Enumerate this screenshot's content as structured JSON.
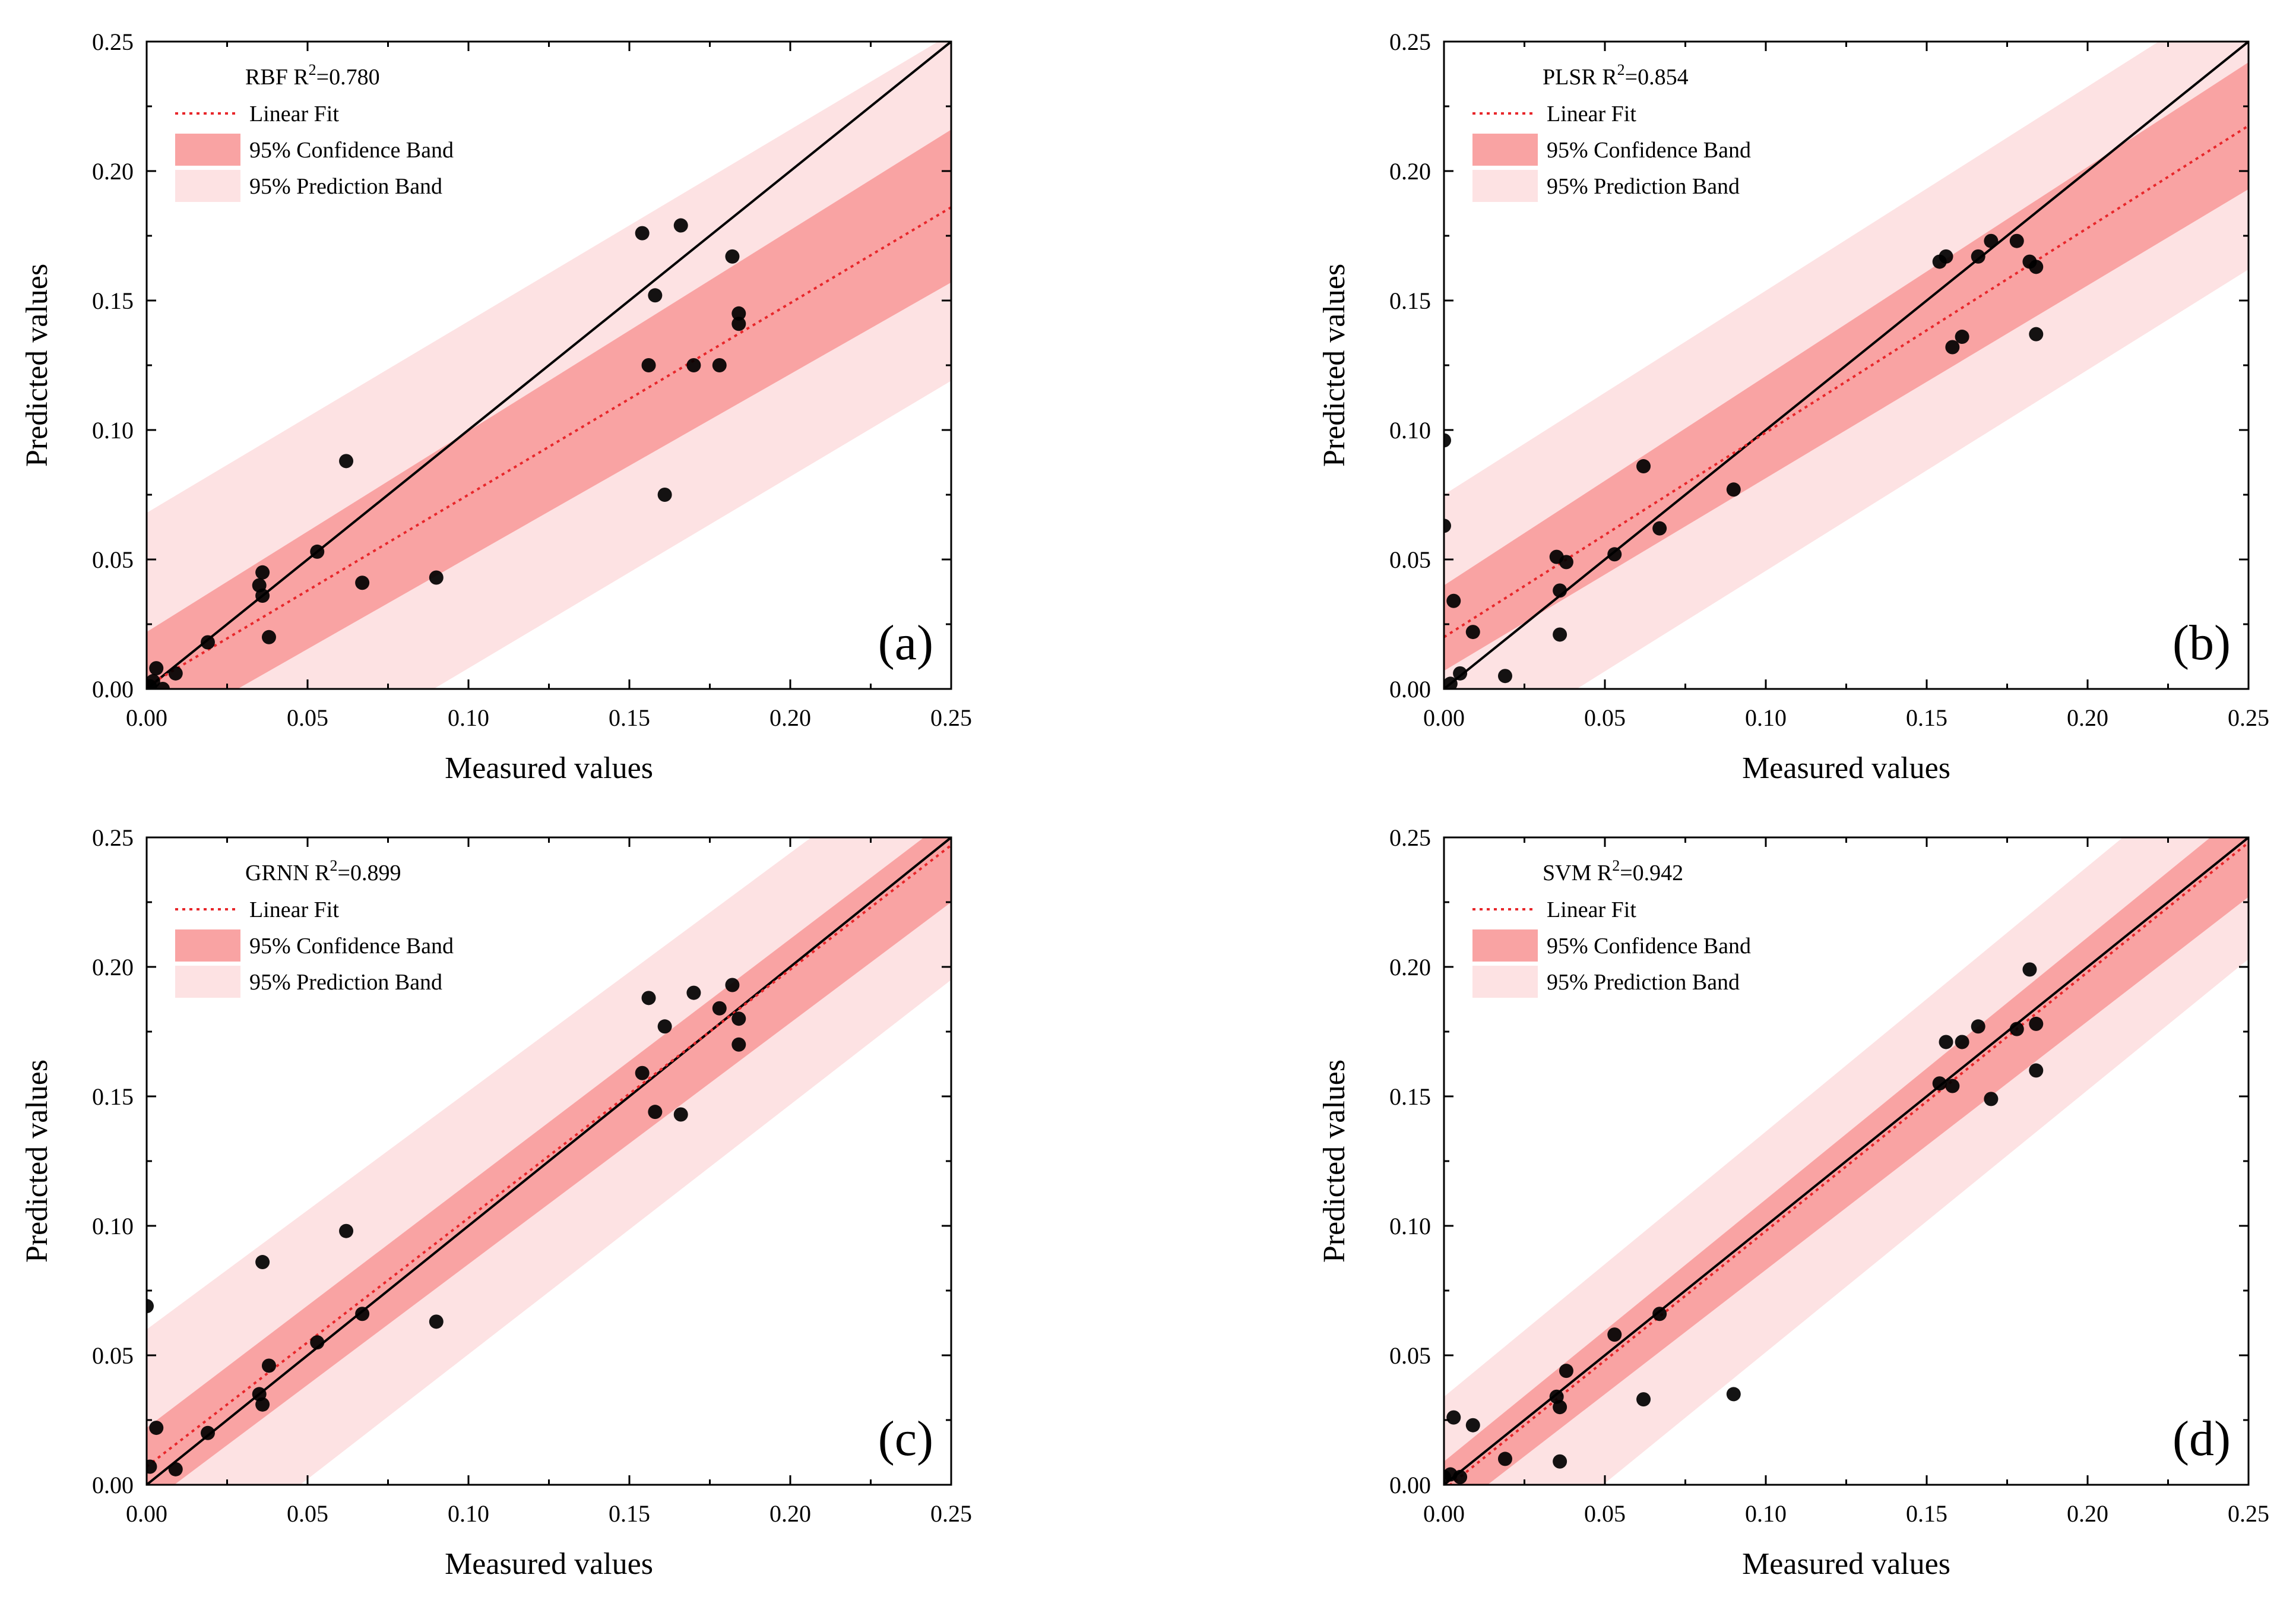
{
  "chart_data": [
    {
      "type": "scatter",
      "panel_label": "(a)",
      "model_label": "RBF R",
      "r2_superscript": "2",
      "r2_value": "=0.780",
      "xlabel": "Measured values",
      "ylabel": "Predicted values",
      "xlim": [
        0,
        0.25
      ],
      "ylim": [
        0,
        0.25
      ],
      "xticks": [
        "0.00",
        "0.05",
        "0.10",
        "0.15",
        "0.20",
        "0.25"
      ],
      "yticks": [
        "0.00",
        "0.05",
        "0.10",
        "0.15",
        "0.20",
        "0.25"
      ],
      "legend": {
        "position": "top-left",
        "entries": [
          "Linear Fit",
          "95% Confidence Band",
          "95% Prediction Band"
        ]
      },
      "fit": {
        "slope": 0.74,
        "intercept": 0.001
      },
      "confidence_band": {
        "lower": [
          [
            0,
            -0.02
          ],
          [
            0.25,
            0.157
          ]
        ],
        "upper": [
          [
            0,
            0.022
          ],
          [
            0.25,
            0.216
          ]
        ]
      },
      "prediction_band": {
        "lower": [
          [
            0,
            -0.066
          ],
          [
            0.25,
            0.119
          ]
        ],
        "upper": [
          [
            0,
            0.068
          ],
          [
            0.25,
            0.253
          ]
        ]
      },
      "points": [
        [
          0.001,
          0.001
        ],
        [
          0.002,
          0.003
        ],
        [
          0.003,
          0.008
        ],
        [
          0.005,
          0.0
        ],
        [
          0.009,
          0.006
        ],
        [
          0.019,
          0.018
        ],
        [
          0.035,
          0.04
        ],
        [
          0.036,
          0.036
        ],
        [
          0.036,
          0.045
        ],
        [
          0.038,
          0.02
        ],
        [
          0.053,
          0.053
        ],
        [
          0.062,
          0.088
        ],
        [
          0.067,
          0.041
        ],
        [
          0.09,
          0.043
        ],
        [
          0.154,
          0.176
        ],
        [
          0.156,
          0.125
        ],
        [
          0.158,
          0.152
        ],
        [
          0.161,
          0.075
        ],
        [
          0.166,
          0.179
        ],
        [
          0.17,
          0.125
        ],
        [
          0.178,
          0.125
        ],
        [
          0.182,
          0.167
        ],
        [
          0.184,
          0.141
        ],
        [
          0.184,
          0.145
        ]
      ]
    },
    {
      "type": "scatter",
      "panel_label": "(b)",
      "model_label": "PLSR R",
      "r2_superscript": "2",
      "r2_value": "=0.854",
      "xlabel": "Measured values",
      "ylabel": "Predicted values",
      "xlim": [
        0,
        0.25
      ],
      "ylim": [
        0,
        0.25
      ],
      "xticks": [
        "0.00",
        "0.05",
        "0.10",
        "0.15",
        "0.20",
        "0.25"
      ],
      "yticks": [
        "0.00",
        "0.05",
        "0.10",
        "0.15",
        "0.20",
        "0.25"
      ],
      "legend": {
        "position": "top-left",
        "entries": [
          "Linear Fit",
          "95% Confidence Band",
          "95% Prediction Band"
        ]
      },
      "fit": {
        "slope": 0.79,
        "intercept": 0.02
      },
      "confidence_band": {
        "lower": [
          [
            0,
            0.007
          ],
          [
            0.25,
            0.193
          ]
        ],
        "upper": [
          [
            0,
            0.04
          ],
          [
            0.25,
            0.242
          ]
        ]
      },
      "prediction_band": {
        "lower": [
          [
            0,
            -0.032
          ],
          [
            0.25,
            0.162
          ]
        ],
        "upper": [
          [
            0,
            0.075
          ],
          [
            0.25,
            0.272
          ]
        ]
      },
      "points": [
        [
          0.0,
          0.096
        ],
        [
          0.0,
          0.063
        ],
        [
          0.002,
          0.002
        ],
        [
          0.003,
          0.034
        ],
        [
          0.005,
          0.006
        ],
        [
          0.009,
          0.022
        ],
        [
          0.019,
          0.005
        ],
        [
          0.035,
          0.051
        ],
        [
          0.036,
          0.021
        ],
        [
          0.036,
          0.038
        ],
        [
          0.038,
          0.049
        ],
        [
          0.053,
          0.052
        ],
        [
          0.062,
          0.086
        ],
        [
          0.067,
          0.062
        ],
        [
          0.09,
          0.077
        ],
        [
          0.154,
          0.165
        ],
        [
          0.156,
          0.167
        ],
        [
          0.158,
          0.132
        ],
        [
          0.161,
          0.136
        ],
        [
          0.166,
          0.167
        ],
        [
          0.17,
          0.173
        ],
        [
          0.178,
          0.173
        ],
        [
          0.182,
          0.165
        ],
        [
          0.184,
          0.163
        ],
        [
          0.184,
          0.137
        ]
      ]
    },
    {
      "type": "scatter",
      "panel_label": "(c)",
      "model_label": "GRNN R",
      "r2_superscript": "2",
      "r2_value": "=0.899",
      "xlabel": "Measured values",
      "ylabel": "Predicted values",
      "xlim": [
        0,
        0.25
      ],
      "ylim": [
        0,
        0.25
      ],
      "xticks": [
        "0.00",
        "0.05",
        "0.10",
        "0.15",
        "0.20",
        "0.25"
      ],
      "yticks": [
        "0.00",
        "0.05",
        "0.10",
        "0.15",
        "0.20",
        "0.25"
      ],
      "legend": {
        "position": "top-left",
        "entries": [
          "Linear Fit",
          "95% Confidence Band",
          "95% Prediction Band"
        ]
      },
      "fit": {
        "slope": 0.96,
        "intercept": 0.007
      },
      "confidence_band": {
        "lower": [
          [
            0,
            -0.008
          ],
          [
            0.25,
            0.225
          ]
        ],
        "upper": [
          [
            0,
            0.022
          ],
          [
            0.25,
            0.258
          ]
        ]
      },
      "prediction_band": {
        "lower": [
          [
            0,
            -0.046
          ],
          [
            0.25,
            0.195
          ]
        ],
        "upper": [
          [
            0,
            0.06
          ],
          [
            0.25,
            0.29
          ]
        ]
      },
      "points": [
        [
          0.0,
          0.069
        ],
        [
          0.001,
          0.007
        ],
        [
          0.003,
          0.022
        ],
        [
          0.009,
          0.006
        ],
        [
          0.019,
          0.02
        ],
        [
          0.035,
          0.035
        ],
        [
          0.036,
          0.031
        ],
        [
          0.036,
          0.086
        ],
        [
          0.038,
          0.046
        ],
        [
          0.053,
          0.055
        ],
        [
          0.062,
          0.098
        ],
        [
          0.067,
          0.066
        ],
        [
          0.09,
          0.063
        ],
        [
          0.154,
          0.159
        ],
        [
          0.156,
          0.188
        ],
        [
          0.158,
          0.144
        ],
        [
          0.161,
          0.177
        ],
        [
          0.166,
          0.143
        ],
        [
          0.17,
          0.19
        ],
        [
          0.178,
          0.184
        ],
        [
          0.182,
          0.193
        ],
        [
          0.184,
          0.18
        ],
        [
          0.184,
          0.17
        ]
      ]
    },
    {
      "type": "scatter",
      "panel_label": "(d)",
      "model_label": "SVM R",
      "r2_superscript": "2",
      "r2_value": "=0.942",
      "xlabel": "Measured values",
      "ylabel": "Predicted values",
      "xlim": [
        0,
        0.25
      ],
      "ylim": [
        0,
        0.25
      ],
      "xticks": [
        "0.00",
        "0.05",
        "0.10",
        "0.15",
        "0.20",
        "0.25"
      ],
      "yticks": [
        "0.00",
        "0.05",
        "0.10",
        "0.15",
        "0.20",
        "0.25"
      ],
      "legend": {
        "position": "top-left",
        "entries": [
          "Linear Fit",
          "95% Confidence Band",
          "95% Prediction Band"
        ]
      },
      "fit": {
        "slope": 1.0,
        "intercept": -0.002
      },
      "confidence_band": {
        "lower": [
          [
            0,
            -0.013
          ],
          [
            0.25,
            0.227
          ]
        ],
        "upper": [
          [
            0,
            0.009
          ],
          [
            0.25,
            0.262
          ]
        ]
      },
      "prediction_band": {
        "lower": [
          [
            0,
            -0.05
          ],
          [
            0.25,
            0.203
          ]
        ],
        "upper": [
          [
            0,
            0.034
          ],
          [
            0.25,
            0.29
          ]
        ]
      },
      "points": [
        [
          0.0,
          0.003
        ],
        [
          0.002,
          0.004
        ],
        [
          0.003,
          0.026
        ],
        [
          0.005,
          0.003
        ],
        [
          0.009,
          0.023
        ],
        [
          0.019,
          0.01
        ],
        [
          0.035,
          0.034
        ],
        [
          0.036,
          0.009
        ],
        [
          0.036,
          0.03
        ],
        [
          0.038,
          0.044
        ],
        [
          0.053,
          0.058
        ],
        [
          0.062,
          0.033
        ],
        [
          0.067,
          0.066
        ],
        [
          0.09,
          0.035
        ],
        [
          0.154,
          0.155
        ],
        [
          0.156,
          0.171
        ],
        [
          0.158,
          0.154
        ],
        [
          0.161,
          0.171
        ],
        [
          0.166,
          0.177
        ],
        [
          0.17,
          0.149
        ],
        [
          0.178,
          0.176
        ],
        [
          0.182,
          0.199
        ],
        [
          0.184,
          0.178
        ],
        [
          0.184,
          0.16
        ]
      ]
    }
  ],
  "colors": {
    "prediction_band": "#fde2e3",
    "confidence_band": "#f9a3a3",
    "fit_line": "#e8262a",
    "identity_line": "#000000",
    "points": "#000000"
  }
}
